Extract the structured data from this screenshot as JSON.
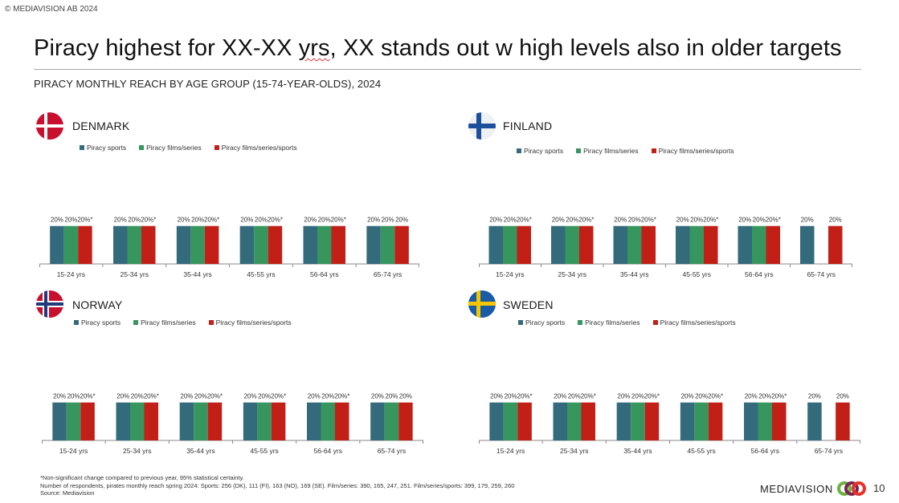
{
  "copyright": "© MEDIAVISION AB 2024",
  "title": {
    "pre": "Piracy highest for XX-XX ",
    "flagged_word": "yrs",
    "post": ", XX stands out w high levels also in older targets"
  },
  "subtitle": "PIRACY MONTHLY REACH BY AGE GROUP (15-74-YEAR-OLDS), 2024",
  "colors": {
    "sports": "#336b7d",
    "films_series": "#36965e",
    "films_series_sports": "#c21f17",
    "axis": "#8a8a8a"
  },
  "legend": [
    "Piracy sports",
    "Piracy films/series",
    "Piracy films/series/sports"
  ],
  "chart_data": [
    {
      "type": "bar",
      "title": "DENMARK",
      "flag": "denmark-flag",
      "categories": [
        "15-24 yrs",
        "25-34 yrs",
        "35-44 yrs",
        "45-55 yrs",
        "56-64 yrs",
        "65-74 yrs"
      ],
      "series": [
        {
          "name": "Piracy sports",
          "values": [
            20,
            20,
            20,
            20,
            20,
            20
          ],
          "labels": [
            "20%",
            "20%",
            "20%",
            "20%",
            "20%",
            "20%"
          ]
        },
        {
          "name": "Piracy films/series",
          "values": [
            20,
            20,
            20,
            20,
            20,
            20
          ],
          "labels": [
            "20%",
            "20%",
            "20%",
            "20%",
            "20%",
            "20%"
          ]
        },
        {
          "name": "Piracy films/series/sports",
          "values": [
            20,
            20,
            20,
            20,
            20,
            20
          ],
          "labels": [
            "20%*",
            "20%*",
            "20%*",
            "20%*",
            "20%*",
            "20%"
          ]
        }
      ],
      "ylim": [
        0,
        55
      ],
      "legend_position": "top",
      "grid": false
    },
    {
      "type": "bar",
      "title": "FINLAND",
      "flag": "finland-flag",
      "categories": [
        "15-24 yrs",
        "25-34 yrs",
        "35-44 yrs",
        "45-55 yrs",
        "56-64 yrs",
        "65-74 yrs"
      ],
      "series": [
        {
          "name": "Piracy sports",
          "values": [
            20,
            20,
            20,
            20,
            20,
            20
          ],
          "labels": [
            "20%",
            "20%",
            "20%",
            "20%",
            "20%",
            "20%"
          ]
        },
        {
          "name": "Piracy films/series",
          "values": [
            20,
            20,
            20,
            20,
            20,
            null
          ],
          "labels": [
            "20%",
            "20%",
            "20%",
            "20%",
            "20%",
            null
          ]
        },
        {
          "name": "Piracy films/series/sports",
          "values": [
            20,
            20,
            20,
            20,
            20,
            20
          ],
          "labels": [
            "20%*",
            "20%*",
            "20%*",
            "20%*",
            "20%*",
            "20%"
          ]
        }
      ],
      "ylim": [
        0,
        55
      ],
      "legend_position": "top",
      "grid": false
    },
    {
      "type": "bar",
      "title": "NORWAY",
      "flag": "norway-flag",
      "categories": [
        "15-24 yrs",
        "25-34 yrs",
        "35-44 yrs",
        "45-55 yrs",
        "56-64 yrs",
        "65-74 yrs"
      ],
      "series": [
        {
          "name": "Piracy sports",
          "values": [
            20,
            20,
            20,
            20,
            20,
            20
          ],
          "labels": [
            "20%",
            "20%",
            "20%",
            "20%",
            "20%",
            "20%"
          ]
        },
        {
          "name": "Piracy films/series",
          "values": [
            20,
            20,
            20,
            20,
            20,
            20
          ],
          "labels": [
            "20%",
            "20%",
            "20%",
            "20%",
            "20%",
            "20%"
          ]
        },
        {
          "name": "Piracy films/series/sports",
          "values": [
            20,
            20,
            20,
            20,
            20,
            20
          ],
          "labels": [
            "20%*",
            "20%*",
            "20%*",
            "20%*",
            "20%*",
            "20%"
          ]
        }
      ],
      "ylim": [
        0,
        55
      ],
      "legend_position": "top",
      "grid": false
    },
    {
      "type": "bar",
      "title": "SWEDEN",
      "flag": "sweden-flag",
      "categories": [
        "15-24 yrs",
        "25-34 yrs",
        "35-44 yrs",
        "45-55 yrs",
        "56-64 yrs",
        "65-74 yrs"
      ],
      "series": [
        {
          "name": "Piracy sports",
          "values": [
            20,
            20,
            20,
            20,
            20,
            20
          ],
          "labels": [
            "20%",
            "20%",
            "20%",
            "20%",
            "20%",
            "20%"
          ]
        },
        {
          "name": "Piracy films/series",
          "values": [
            20,
            20,
            20,
            20,
            20,
            null
          ],
          "labels": [
            "20%",
            "20%",
            "20%",
            "20%",
            "20%",
            null
          ]
        },
        {
          "name": "Piracy films/series/sports",
          "values": [
            20,
            20,
            20,
            20,
            20,
            20
          ],
          "labels": [
            "20%*",
            "20%*",
            "20%*",
            "20%*",
            "20%*",
            "20%"
          ]
        }
      ],
      "ylim": [
        0,
        55
      ],
      "legend_position": "top",
      "grid": false
    }
  ],
  "footnotes": [
    "*Non-significant change compared to previous year, 95% statistical certainty.",
    "Number of respondents, pirates monthly reach spring 2024: Sports: 256 (DK), 111 (FI), 163 (NO), 169 (SE). Film/series: 390, 165, 247, 251. Film/series/sports: 399, 179, 259, 260",
    "Source: Mediavision"
  ],
  "brand": "MEDIAVISION",
  "page_number": "10"
}
